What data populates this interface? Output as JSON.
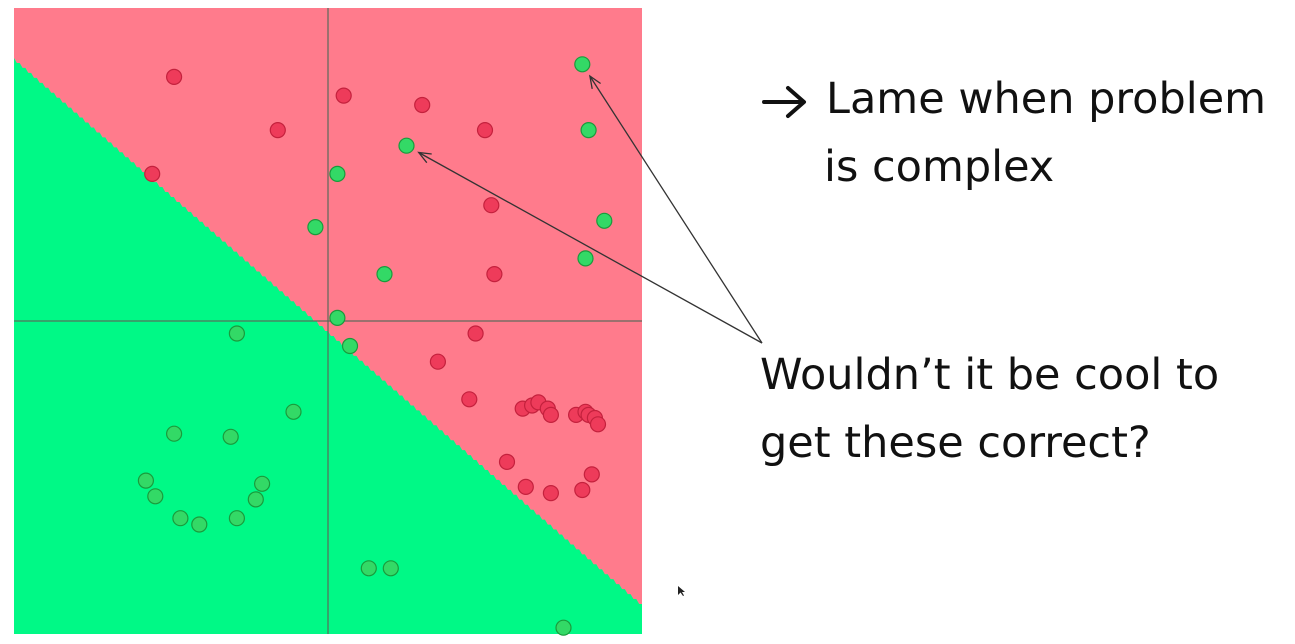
{
  "slide": {
    "line1": "Lame when problem",
    "line2": "is complex",
    "question1": "Wouldn’t it be cool to",
    "question2": "get these correct?",
    "bullet_icon": "right-arrow-icon"
  },
  "colors": {
    "red_region": "#ff7b8c",
    "green_region": "#00f986",
    "red_point": "#ee3b5a",
    "red_point_edge": "#c4213d",
    "green_point": "#33d966",
    "green_point_edge": "#1a9a3c",
    "axis_line": "#5a6a5a",
    "annotation_line": "#333333"
  },
  "points": {
    "red": [
      [
        -0.49,
        0.78
      ],
      [
        0.05,
        0.72
      ],
      [
        0.3,
        0.69
      ],
      [
        -0.16,
        0.61
      ],
      [
        0.5,
        0.61
      ],
      [
        -0.56,
        0.47
      ],
      [
        0.52,
        0.37
      ],
      [
        0.53,
        0.15
      ],
      [
        0.47,
        -0.04
      ],
      [
        0.35,
        -0.13
      ],
      [
        0.45,
        -0.25
      ],
      [
        0.62,
        -0.28
      ],
      [
        0.65,
        -0.27
      ],
      [
        0.67,
        -0.26
      ],
      [
        0.7,
        -0.28
      ],
      [
        0.71,
        -0.3
      ],
      [
        0.79,
        -0.3
      ],
      [
        0.82,
        -0.29
      ],
      [
        0.83,
        -0.3
      ],
      [
        0.85,
        -0.31
      ],
      [
        0.86,
        -0.33
      ],
      [
        0.57,
        -0.45
      ],
      [
        0.63,
        -0.53
      ],
      [
        0.71,
        -0.55
      ],
      [
        0.81,
        -0.54
      ],
      [
        0.84,
        -0.49
      ]
    ],
    "green": [
      [
        0.81,
        0.82
      ],
      [
        0.83,
        0.61
      ],
      [
        0.25,
        0.56
      ],
      [
        0.03,
        0.47
      ],
      [
        -0.04,
        0.3
      ],
      [
        0.88,
        0.32
      ],
      [
        0.82,
        0.2
      ],
      [
        0.18,
        0.15
      ],
      [
        0.03,
        0.01
      ],
      [
        -0.29,
        -0.04
      ],
      [
        0.07,
        -0.08
      ],
      [
        -0.11,
        -0.29
      ],
      [
        -0.49,
        -0.36
      ],
      [
        -0.31,
        -0.37
      ],
      [
        -0.58,
        -0.51
      ],
      [
        -0.21,
        -0.52
      ],
      [
        -0.55,
        -0.56
      ],
      [
        -0.23,
        -0.57
      ],
      [
        -0.47,
        -0.63
      ],
      [
        -0.41,
        -0.65
      ],
      [
        -0.29,
        -0.63
      ],
      [
        0.13,
        -0.79
      ],
      [
        0.2,
        -0.79
      ],
      [
        0.75,
        -0.98
      ]
    ]
  }
}
